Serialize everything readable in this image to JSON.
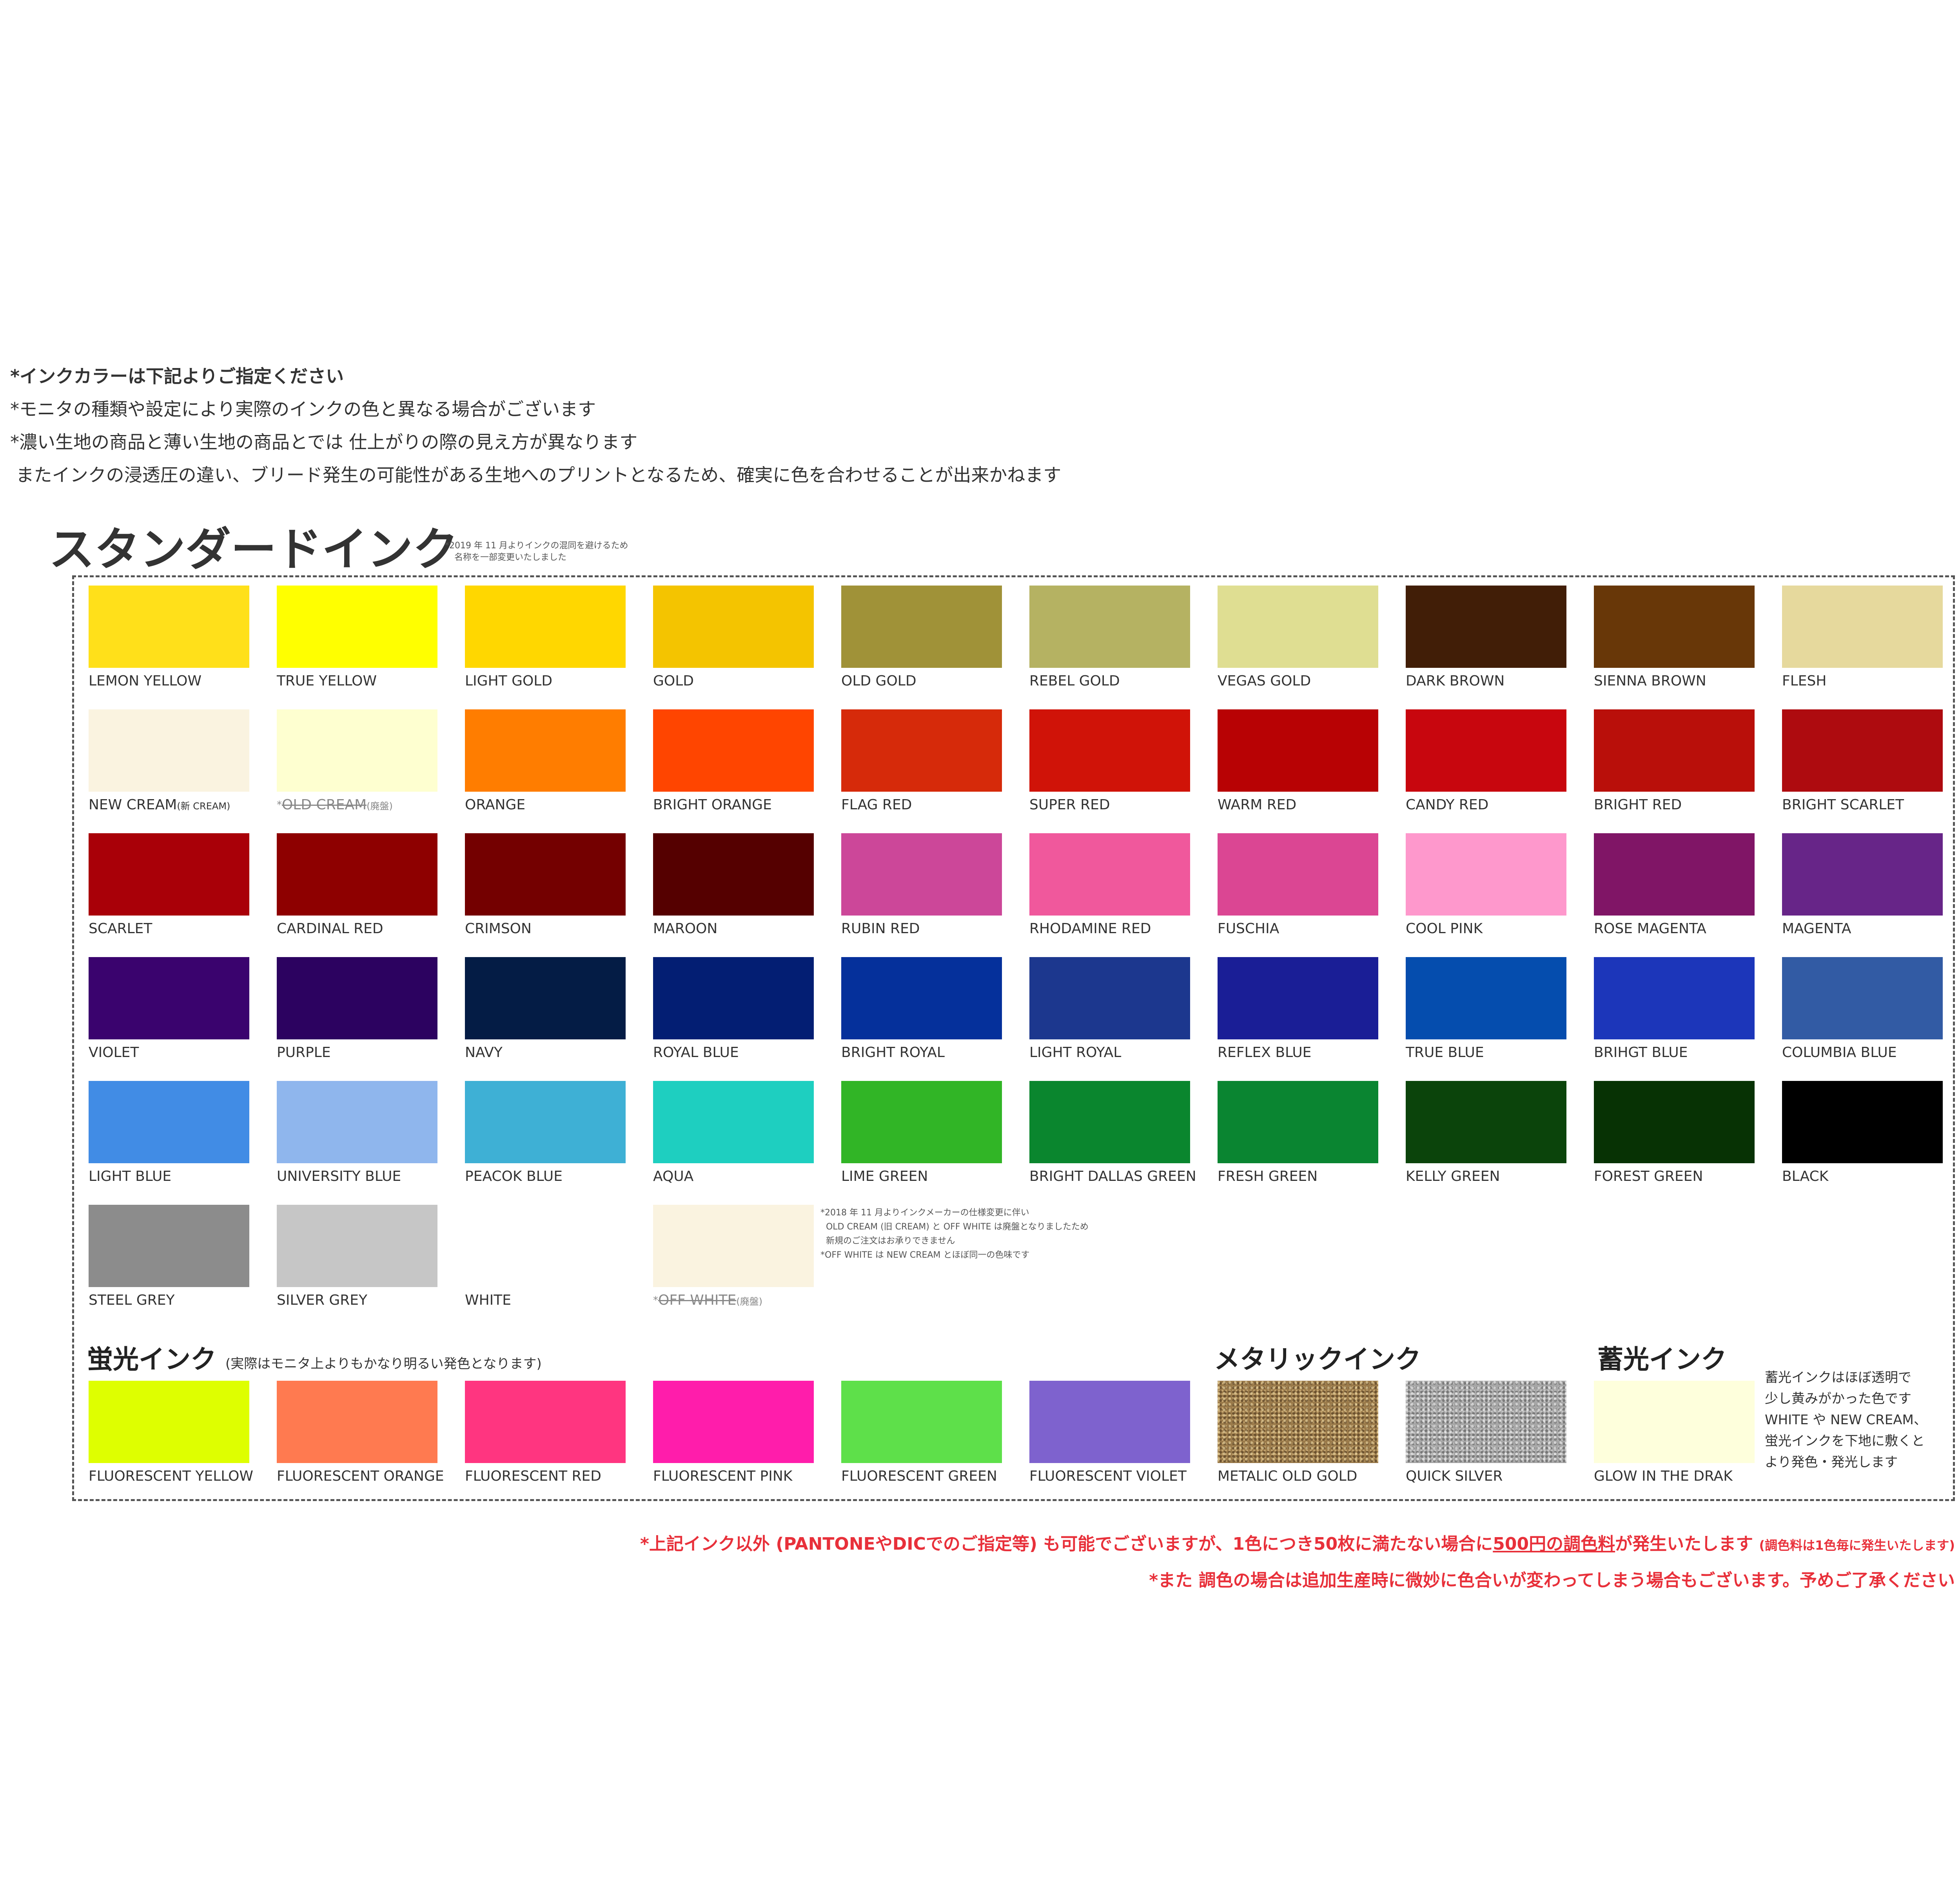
{
  "notes": [
    "*インクカラーは下記よりご指定ください",
    "*モニタの種類や設定により実際のインクの色と異なる場合がございます",
    "*濃い生地の商品と薄い生地の商品とでは 仕上がりの際の見え方が異なります",
    " またインクの浸透圧の違い、ブリード発生の可能性がある生地へのプリントとなるため、確実に色を合わせることが出来かねます"
  ],
  "standard": {
    "title": "スタンダードインク",
    "note": [
      "*2019 年 11 月よりインクの混同を避けるため",
      "名称を一部変更いたしました"
    ],
    "swatches": [
      {
        "name": "LEMON YELLOW",
        "color": "#FFE01A"
      },
      {
        "name": "TRUE YELLOW",
        "color": "#FFFF00"
      },
      {
        "name": "LIGHT GOLD",
        "color": "#FFD700"
      },
      {
        "name": "GOLD",
        "color": "#F4C400"
      },
      {
        "name": "OLD GOLD",
        "color": "#A09238"
      },
      {
        "name": "REBEL GOLD",
        "color": "#B5B262"
      },
      {
        "name": "VEGAS GOLD",
        "color": "#DFDE92"
      },
      {
        "name": "DARK BROWN",
        "color": "#411E07"
      },
      {
        "name": "SIENNA BROWN",
        "color": "#683708"
      },
      {
        "name": "FLESH",
        "color": "#E6D99D"
      },
      {
        "name": "NEW CREAM",
        "suffix": "(新 CREAM)",
        "color": "#FAF3E0"
      },
      {
        "name": "OLD CREAM",
        "suffix": "(廃盤)",
        "color": "#FEFFD0",
        "strike": true,
        "mark": "*"
      },
      {
        "name": "ORANGE",
        "color": "#FF7D00"
      },
      {
        "name": "BRIGHT ORANGE",
        "color": "#FF4500"
      },
      {
        "name": "FLAG RED",
        "color": "#D62A0A"
      },
      {
        "name": "SUPER RED",
        "color": "#D01308"
      },
      {
        "name": "WARM RED",
        "color": "#B80204"
      },
      {
        "name": "CANDY RED",
        "color": "#C8060E"
      },
      {
        "name": "BRIGHT RED",
        "color": "#B90F0A"
      },
      {
        "name": "BRIGHT SCARLET",
        "color": "#AE0B0F"
      },
      {
        "name": "SCARLET",
        "color": "#A90008"
      },
      {
        "name": "CARDINAL RED",
        "color": "#8E0000"
      },
      {
        "name": "CRIMSON",
        "color": "#740000"
      },
      {
        "name": "MAROON",
        "color": "#550000"
      },
      {
        "name": "RUBIN RED",
        "color": "#CC4799"
      },
      {
        "name": "RHODAMINE RED",
        "color": "#F0589C"
      },
      {
        "name": "FUSCHIA",
        "color": "#DB4693"
      },
      {
        "name": "COOL PINK",
        "color": "#FE98CC"
      },
      {
        "name": "ROSE MAGENTA",
        "color": "#801566"
      },
      {
        "name": "MAGENTA",
        "color": "#672588"
      },
      {
        "name": "VIOLET",
        "color": "#3A036E"
      },
      {
        "name": "PURPLE",
        "color": "#2C0260"
      },
      {
        "name": "NAVY",
        "color": "#041C45"
      },
      {
        "name": "ROYAL BLUE",
        "color": "#031E73"
      },
      {
        "name": "BRIGHT ROYAL",
        "color": "#05309B"
      },
      {
        "name": "LIGHT ROYAL",
        "color": "#1C378E"
      },
      {
        "name": "REFLEX BLUE",
        "color": "#1A1E96"
      },
      {
        "name": "TRUE BLUE",
        "color": "#054DAE"
      },
      {
        "name": "BRIHGT BLUE",
        "color": "#1C36BA"
      },
      {
        "name": "COLUMBIA BLUE",
        "color": "#325BA4"
      },
      {
        "name": "LIGHT BLUE",
        "color": "#418CE5"
      },
      {
        "name": "UNIVERSITY BLUE",
        "color": "#8FB6ED"
      },
      {
        "name": "PEACOK BLUE",
        "color": "#3EB0D5"
      },
      {
        "name": "AQUA",
        "color": "#1ECFC0"
      },
      {
        "name": "LIME GREEN",
        "color": "#31B526"
      },
      {
        "name": "BRIGHT DALLAS GREEN",
        "color": "#0A862E"
      },
      {
        "name": "FRESH GREEN",
        "color": "#0A8531"
      },
      {
        "name": "KELLY GREEN",
        "color": "#0B440B"
      },
      {
        "name": "FOREST GREEN",
        "color": "#073204"
      },
      {
        "name": "BLACK",
        "color": "#000000"
      },
      {
        "name": "STEEL GREY",
        "color": "#8C8C8C"
      },
      {
        "name": "SILVER GREY",
        "color": "#C6C6C6"
      },
      {
        "name": "WHITE",
        "color": "#FFFFFF"
      },
      {
        "name": "OFF WHITE",
        "suffix": "(廃盤)",
        "color": "#FAF3E0",
        "strike": true,
        "mark": "*"
      }
    ],
    "discontinued_note": [
      "*2018 年 11 月よりインクメーカーの仕様変更に伴い",
      "  OLD CREAM (旧 CREAM) と OFF WHITE は廃盤となりましたため",
      "  新規のご注文はお承りできません",
      "*OFF WHITE は NEW CREAM とほぼ同一の色味です"
    ]
  },
  "fluorescent": {
    "title": "蛍光インク",
    "note": "(実際はモニタ上よりもかなり明るい発色となります)",
    "swatches": [
      {
        "name": "FLUORESCENT YELLOW",
        "color": "#DEFF00"
      },
      {
        "name": "FLUORESCENT ORANGE",
        "color": "#FF7A50"
      },
      {
        "name": "FLUORESCENT RED",
        "color": "#FF3580"
      },
      {
        "name": "FLUORESCENT PINK",
        "color": "#FF1DAB"
      },
      {
        "name": "FLUORESCENT GREEN",
        "color": "#5EE04A"
      },
      {
        "name": "FLUORESCENT VIOLET",
        "color": "#7E62CE"
      }
    ]
  },
  "metallic": {
    "title": "メタリックインク",
    "swatches": [
      {
        "name": "METALIC OLD GOLD",
        "color": "#9A7A4A"
      },
      {
        "name": "QUICK SILVER",
        "color": "#A6A6A6"
      }
    ]
  },
  "glow": {
    "title": "蓄光インク",
    "swatches": [
      {
        "name": "GLOW IN THE DRAK",
        "color": "#FEFFDC"
      }
    ],
    "note": [
      "蓄光インクはほぼ透明で",
      "少し黄みがかった色です",
      "WHITE や NEW CREAM、",
      "蛍光インクを下地に敷くと",
      "より発色・発光します"
    ]
  },
  "red_notes": {
    "line1": {
      "part1": "*上記インク以外 (PANTONEやDICでのご指定等) も可能でございますが、1色につき50枚に満たない場合に",
      "highlight": "500円の調色料",
      "part2": "が発生いたします",
      "small": "(調色料は1色毎に発生いたします)"
    },
    "line2": "*また 調色の場合は追加生産時に微妙に色合いが変わってしまう場合もございます。予めご了承ください"
  }
}
